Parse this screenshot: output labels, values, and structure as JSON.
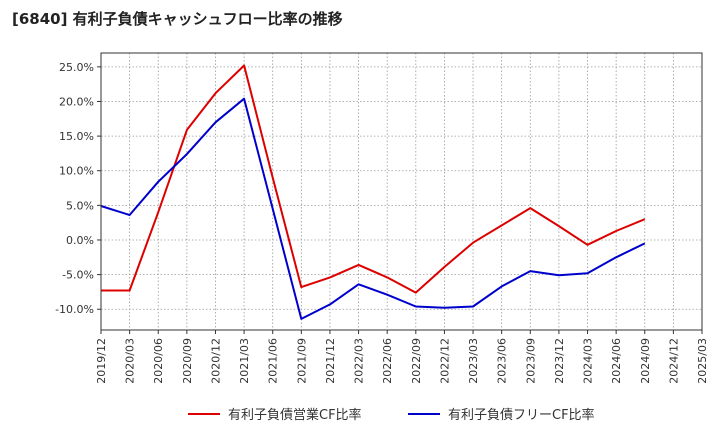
{
  "title": "[6840]  有利子負債キャッシュフロー比率の推移",
  "colors": {
    "series1": "#dd0000",
    "series2": "#0000cc",
    "grid": "#999999",
    "axis": "#333333"
  },
  "chart_data": {
    "type": "line",
    "title": "[6840]  有利子負債キャッシュフロー比率の推移",
    "x": [
      "2019/12",
      "2020/03",
      "2020/06",
      "2020/09",
      "2020/12",
      "2021/03",
      "2021/06",
      "2021/09",
      "2021/12",
      "2022/03",
      "2022/06",
      "2022/09",
      "2022/12",
      "2023/03",
      "2023/06",
      "2023/09",
      "2023/12",
      "2024/03",
      "2024/06",
      "2024/09",
      "2024/12",
      "2025/03"
    ],
    "yticks": [
      -10,
      -5,
      0,
      5,
      10,
      15,
      20,
      25
    ],
    "ytick_labels": [
      "-10.0%",
      "-5.0%",
      "0.0%",
      "5.0%",
      "10.0%",
      "15.0%",
      "20.0%",
      "25.0%"
    ],
    "ylim": [
      -13,
      27
    ],
    "grid": true,
    "legend_position": "bottom",
    "series": [
      {
        "name": "有利子負債営業CF比率",
        "color": "#dd0000",
        "values": [
          -7.3,
          -7.3,
          4.0,
          15.9,
          21.2,
          25.2,
          9.0,
          -6.8,
          -5.4,
          -3.6,
          -5.4,
          -7.6,
          -3.9,
          -0.4,
          2.1,
          4.6,
          2.0,
          -0.7,
          1.3,
          3.0,
          null,
          null
        ]
      },
      {
        "name": "有利子負債フリーCF比率",
        "color": "#0000cc",
        "values": [
          4.9,
          3.6,
          8.4,
          12.4,
          17.0,
          20.4,
          4.5,
          -11.4,
          -9.3,
          -6.4,
          -7.9,
          -9.6,
          -9.8,
          -9.6,
          -6.7,
          -4.5,
          -5.1,
          -4.8,
          -2.5,
          -0.5,
          null,
          null
        ]
      }
    ]
  }
}
